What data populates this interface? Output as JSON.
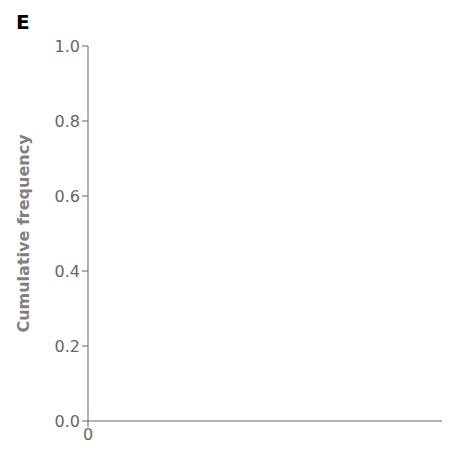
{
  "chart_data": {
    "type": "line",
    "title": "E",
    "ylabel": "Cumulative frequency",
    "series": [],
    "xlim": [
      0,
      1
    ],
    "xticks": [
      0
    ],
    "ylim": [
      0.0,
      1.0
    ],
    "yticks": [
      {
        "value": 0.0,
        "label": "0.0"
      },
      0.2,
      0.4,
      0.6,
      0.8,
      {
        "value": 1.0,
        "label": "1.0"
      }
    ]
  }
}
